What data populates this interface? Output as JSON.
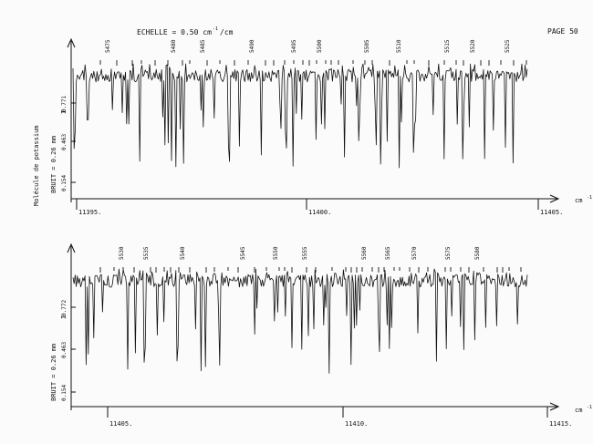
{
  "header": {
    "scale_label": "ECHELLE = 0.50 cm",
    "scale_exponent": "-1",
    "scale_unit_suffix": "/cm",
    "page_label": "PAGE 50"
  },
  "colors": {
    "paper": "#fbfbfb",
    "ink": "#111111",
    "background": "#c9c9c9"
  },
  "chart_data": [
    {
      "type": "line",
      "side_label": "Molécule de potassium",
      "noise_label": "BRUIT = 0.26 mm",
      "y_mark": "I",
      "unit": "cm",
      "unit_exponent": "-1",
      "x_ticks": [
        "11395.",
        "11400.",
        "11405."
      ],
      "y_ticks": [
        "0.771",
        "0.463",
        "0.154"
      ],
      "line_numbers": [
        "5475",
        "5480",
        "5485",
        "5490",
        "5495",
        "5500",
        "5505",
        "5510",
        "5515",
        "5520",
        "5525"
      ],
      "x_range": [
        11394.4,
        11405.6
      ],
      "y_range": [
        0.154,
        0.771
      ],
      "seed": 7
    },
    {
      "type": "line",
      "noise_label": "BRUIT = 0.26 mm",
      "y_mark": "I",
      "unit": "cm",
      "unit_exponent": "-1",
      "x_ticks": [
        "11405.",
        "11410.",
        "11415."
      ],
      "y_ticks": [
        "0.772",
        "0.463",
        "0.154"
      ],
      "line_numbers": [
        "5530",
        "5535",
        "5540",
        "5545",
        "5550",
        "5555",
        "5560",
        "5565",
        "5570",
        "5575",
        "5580"
      ],
      "x_range": [
        11404.4,
        11415.6
      ],
      "y_range": [
        0.154,
        0.772
      ],
      "seed": 13
    }
  ]
}
